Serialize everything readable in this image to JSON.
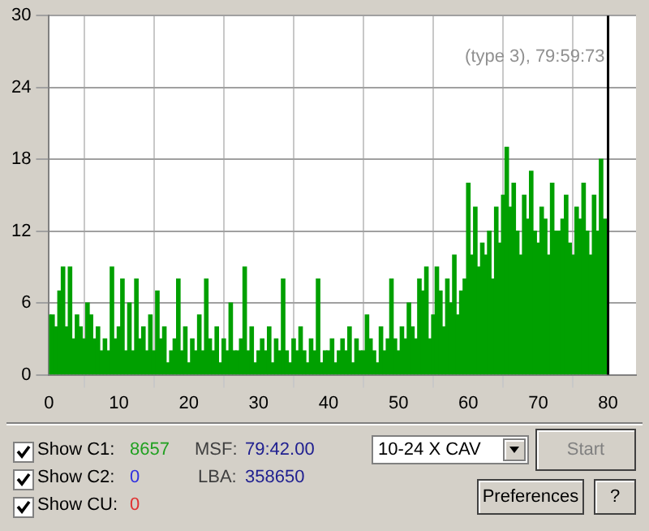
{
  "chart_data": {
    "type": "bar",
    "x": [
      0,
      0.5,
      1,
      1.5,
      2,
      2.5,
      3,
      3.5,
      4,
      4.5,
      5,
      5.5,
      6,
      6.5,
      7,
      7.5,
      8,
      8.5,
      9,
      9.5,
      10,
      10.5,
      11,
      11.5,
      12,
      12.5,
      13,
      13.5,
      14,
      14.5,
      15,
      15.5,
      16,
      16.5,
      17,
      17.5,
      18,
      18.5,
      19,
      19.5,
      20,
      20.5,
      21,
      21.5,
      22,
      22.5,
      23,
      23.5,
      24,
      24.5,
      25,
      25.5,
      26,
      26.5,
      27,
      27.5,
      28,
      28.5,
      29,
      29.5,
      30,
      30.5,
      31,
      31.5,
      32,
      32.5,
      33,
      33.5,
      34,
      34.5,
      35,
      35.5,
      36,
      36.5,
      37,
      37.5,
      38,
      38.5,
      39,
      39.5,
      40,
      40.5,
      41,
      41.5,
      42,
      42.5,
      43,
      43.5,
      44,
      44.5,
      45,
      45.5,
      46,
      46.5,
      47,
      47.5,
      48,
      48.5,
      49,
      49.5,
      50,
      50.5,
      51,
      51.5,
      52,
      52.5,
      53,
      53.5,
      54,
      54.5,
      55,
      55.5,
      56,
      56.5,
      57,
      57.5,
      58,
      58.5,
      59,
      59.5,
      60,
      60.5,
      61,
      61.5,
      62,
      62.5,
      63,
      63.5,
      64,
      64.5,
      65,
      65.5,
      66,
      66.5,
      67,
      67.5,
      68,
      68.5,
      69,
      69.5,
      70,
      70.5,
      71,
      71.5,
      72,
      72.5,
      73,
      73.5,
      74,
      74.5,
      75,
      75.5,
      76,
      76.5,
      77,
      77.5,
      78,
      78.5,
      79,
      79.5
    ],
    "series": [
      {
        "color": "#00a000",
        "values": [
          5,
          5,
          4,
          7,
          9,
          4,
          9,
          3,
          5,
          4,
          3,
          6,
          5,
          3,
          4,
          2,
          3,
          2,
          9,
          3,
          4,
          8,
          2,
          6,
          2,
          8,
          3,
          4,
          2,
          5,
          2,
          7,
          3,
          4,
          1,
          2,
          3,
          8,
          2,
          4,
          1,
          3,
          2,
          5,
          2,
          8,
          3,
          2,
          4,
          1,
          3,
          2,
          6,
          2,
          2,
          3,
          9,
          2,
          4,
          1,
          2,
          3,
          2,
          4,
          1,
          3,
          2,
          8,
          2,
          1,
          3,
          2,
          4,
          2,
          1,
          3,
          2,
          8,
          1,
          2,
          2,
          3,
          1,
          2,
          3,
          2,
          4,
          1,
          3,
          2,
          2,
          5,
          3,
          2,
          1,
          4,
          2,
          3,
          8,
          3,
          2,
          4,
          3,
          6,
          4,
          3,
          8,
          7,
          9,
          3,
          5,
          9,
          7,
          4,
          8,
          6,
          10,
          5,
          7,
          8,
          16,
          10,
          14,
          9,
          11,
          10,
          12,
          8,
          14,
          11,
          15,
          19,
          14,
          16,
          12,
          10,
          15,
          13,
          17,
          12,
          11,
          14,
          13,
          10,
          16,
          12,
          12,
          13,
          15,
          11,
          10,
          14,
          13,
          16,
          12,
          10,
          15,
          12,
          18,
          13
        ]
      }
    ],
    "xlim": [
      0,
      84
    ],
    "xticks": [
      0,
      10,
      20,
      30,
      40,
      50,
      60,
      70,
      80
    ],
    "ylim": [
      0,
      30
    ],
    "yticks": [
      0,
      6,
      12,
      18,
      24,
      30
    ],
    "grid": true,
    "ref_lines": [
      {
        "axis": "x",
        "value": 80,
        "color": "#000000"
      }
    ],
    "annotations": [
      "(type 3), 79:59:73",
      "Show C1:",
      "8657",
      "Show C2:",
      "0",
      "Show CU:",
      "0",
      "MSF:",
      "79:42.00",
      "LBA:",
      "358650",
      "10-24 X CAV",
      "Start",
      "Preferences",
      "?"
    ]
  }
}
